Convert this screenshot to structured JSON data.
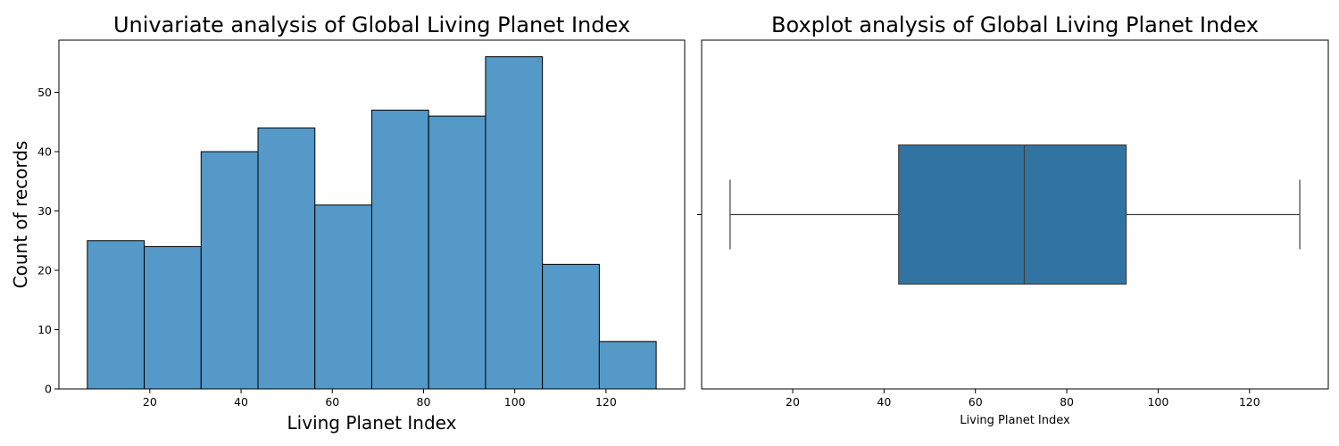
{
  "chart_data": [
    {
      "type": "bar",
      "subtype": "histogram",
      "title": "Univariate analysis of Global Living Planet Index",
      "xlabel": "Living Planet Index",
      "ylabel": "Count of records",
      "bin_edges": [
        6.3,
        18.77,
        31.24,
        43.71,
        56.18,
        68.65,
        81.12,
        93.59,
        106.06,
        118.53,
        131.0
      ],
      "values": [
        25,
        24,
        40,
        44,
        31,
        47,
        46,
        56,
        21,
        8
      ],
      "xlim": [
        0.07,
        137.24
      ],
      "ylim": [
        0,
        58.8
      ],
      "xticks": [
        20,
        40,
        60,
        80,
        100,
        120
      ],
      "yticks": [
        0,
        10,
        20,
        30,
        40,
        50
      ],
      "bar_color": "#5499c7",
      "edge_color": "#000000",
      "grid": false
    },
    {
      "type": "boxplot",
      "title": "Boxplot analysis of Global Living Planet Index",
      "xlabel": "Living Planet Index",
      "ylabel": "",
      "whisker_low": 6.3,
      "q1": 43.2,
      "median": 70.7,
      "q3": 93.0,
      "whisker_high": 131.0,
      "xlim": [
        0.07,
        137.24
      ],
      "xticks": [
        20,
        40,
        60,
        80,
        100,
        120
      ],
      "box_color": "#3274a1",
      "line_color": "#404040",
      "grid": false
    }
  ]
}
